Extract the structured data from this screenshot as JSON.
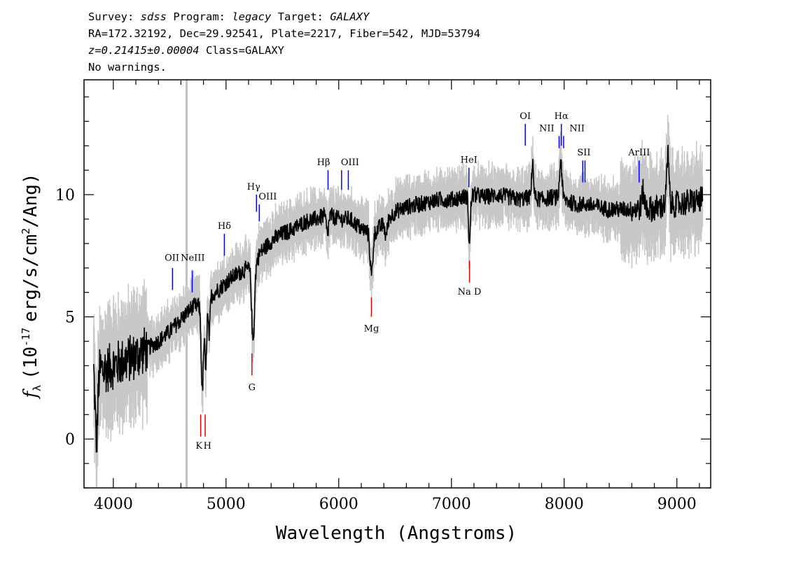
{
  "header": {
    "survey_label": "Survey:",
    "survey": "sdss",
    "program_label": "Program:",
    "program": "legacy",
    "target_label": "Target:",
    "target": "GALAXY",
    "line2": "RA=172.32192, Dec=29.92541, Plate=2217, Fiber=542, MJD=53794",
    "redshift": "z=0.21415±0.00004",
    "class_text": "Class=GALAXY",
    "warnings": "No warnings."
  },
  "chart_data": {
    "type": "line",
    "xlabel": "Wavelength (Angstroms)",
    "ylabel_prefix": "f",
    "ylabel_sub": "λ",
    "ylabel_text": "(10",
    "ylabel_exp": "-17",
    "ylabel_units": "erg/s/cm",
    "ylabel_exp2": "2",
    "ylabel_end": "/Ang)",
    "xlim": [
      3740,
      9300
    ],
    "ylim": [
      -2,
      14.7
    ],
    "xticks": [
      4000,
      5000,
      6000,
      7000,
      8000,
      9000
    ],
    "xtick_labels": [
      "4000",
      "5000",
      "6000",
      "7000",
      "8000",
      "9000"
    ],
    "yticks": [
      0,
      5,
      10
    ],
    "ytick_labels": [
      "0",
      "5",
      "10"
    ],
    "marker_line_x": 4650,
    "colors": {
      "flux": "#000000",
      "error_band": "#c8c8c8",
      "emission": "#0000ff",
      "absorption": "#e00000",
      "marker": "#c0c0c0"
    },
    "continuum_points": [
      [
        3830,
        3.1
      ],
      [
        3900,
        2.8
      ],
      [
        4000,
        3.0
      ],
      [
        4100,
        3.2
      ],
      [
        4200,
        3.4
      ],
      [
        4300,
        3.7
      ],
      [
        4400,
        4.0
      ],
      [
        4500,
        4.4
      ],
      [
        4600,
        4.9
      ],
      [
        4700,
        5.4
      ],
      [
        4800,
        5.5
      ],
      [
        4850,
        5.8
      ],
      [
        4950,
        6.2
      ],
      [
        5050,
        6.6
      ],
      [
        5150,
        6.9
      ],
      [
        5250,
        7.0
      ],
      [
        5300,
        7.6
      ],
      [
        5400,
        8.1
      ],
      [
        5500,
        8.4
      ],
      [
        5600,
        8.6
      ],
      [
        5700,
        8.9
      ],
      [
        5800,
        9.0
      ],
      [
        5900,
        9.2
      ],
      [
        6000,
        9.0
      ],
      [
        6100,
        9.0
      ],
      [
        6200,
        8.6
      ],
      [
        6300,
        8.4
      ],
      [
        6400,
        8.8
      ],
      [
        6500,
        9.3
      ],
      [
        6600,
        9.5
      ],
      [
        6700,
        9.6
      ],
      [
        6800,
        9.7
      ],
      [
        6900,
        9.8
      ],
      [
        7000,
        9.8
      ],
      [
        7100,
        9.9
      ],
      [
        7200,
        10.0
      ],
      [
        7300,
        9.9
      ],
      [
        7400,
        10.0
      ],
      [
        7500,
        9.9
      ],
      [
        7600,
        9.8
      ],
      [
        7700,
        9.9
      ],
      [
        7800,
        9.8
      ],
      [
        7900,
        9.9
      ],
      [
        8000,
        9.8
      ],
      [
        8100,
        9.6
      ],
      [
        8200,
        9.6
      ],
      [
        8300,
        9.5
      ],
      [
        8400,
        9.4
      ],
      [
        8500,
        9.4
      ],
      [
        8600,
        9.4
      ],
      [
        8700,
        9.5
      ],
      [
        8800,
        9.4
      ],
      [
        8900,
        9.6
      ],
      [
        9000,
        9.6
      ],
      [
        9100,
        9.7
      ],
      [
        9230,
        9.8
      ]
    ],
    "dips": [
      [
        3850,
        3.0,
        12
      ],
      [
        4790,
        3.5,
        10
      ],
      [
        4820,
        2.8,
        8
      ],
      [
        4850,
        1.6,
        8
      ],
      [
        5240,
        3.0,
        12
      ],
      [
        5900,
        0.8,
        10
      ],
      [
        6290,
        1.7,
        12
      ],
      [
        6420,
        0.6,
        10
      ],
      [
        7160,
        2.0,
        8
      ]
    ],
    "peaks": [
      [
        7720,
        1.5,
        8
      ],
      [
        7970,
        1.6,
        10
      ],
      [
        8920,
        2.0,
        10
      ],
      [
        8700,
        0.6,
        10
      ]
    ],
    "emission_lines": [
      {
        "label": "OII",
        "x": 4525,
        "tick_top": 7.0,
        "tick_bottom": 6.1,
        "label_y": 7.3
      },
      {
        "label": "NeIII",
        "x": 4700,
        "tick_top": 6.9,
        "tick_bottom": 6.0,
        "label_y": 7.2
      },
      {
        "label": "Hδ",
        "x": 4985,
        "tick_top": 8.4,
        "tick_bottom": 7.5,
        "label_y": 8.6
      },
      {
        "label": "Hγ",
        "x": 5270,
        "tick_top": 10.0,
        "tick_bottom": 9.3,
        "label_y": 10.2
      },
      {
        "label": "OIII",
        "x": 5295,
        "tick_top": 9.6,
        "tick_bottom": 8.9,
        "label_y": 9.8
      },
      {
        "label": "Hβ",
        "x": 5905,
        "tick_top": 11.0,
        "tick_bottom": 10.2,
        "label_y": 11.2
      },
      {
        "label": "OIII",
        "x": 6025,
        "tick_top": 11.0,
        "tick_bottom": 10.2,
        "label_y": 11.2
      },
      {
        "label": "OIII",
        "x": 6085,
        "tick_top": 11.0,
        "tick_bottom": 10.2,
        "label_y": 11.2
      },
      {
        "label": "HeI",
        "x": 7155,
        "tick_top": 11.1,
        "tick_bottom": 10.3,
        "label_y": 11.3
      },
      {
        "label": "OI",
        "x": 7655,
        "tick_top": 12.9,
        "tick_bottom": 12.0,
        "label_y": 13.1
      },
      {
        "label": "NII",
        "x": 7955,
        "tick_top": 12.4,
        "tick_bottom": 11.9,
        "label_y": 12.6
      },
      {
        "label": "Hα",
        "x": 7975,
        "tick_top": 12.9,
        "tick_bottom": 12.0,
        "label_y": 13.1
      },
      {
        "label": "NII",
        "x": 7995,
        "tick_top": 12.4,
        "tick_bottom": 11.9,
        "label_y": 12.6
      },
      {
        "label": "SII",
        "x": 8165,
        "tick_top": 11.4,
        "tick_bottom": 10.5,
        "label_y": 11.6
      },
      {
        "label": "SII",
        "x": 8185,
        "tick_top": 11.4,
        "tick_bottom": 10.5,
        "label_y": 11.6
      },
      {
        "label": "ArIII",
        "x": 8665,
        "tick_top": 11.4,
        "tick_bottom": 10.5,
        "label_y": 11.6
      }
    ],
    "emission_labels": [
      {
        "text": "OII",
        "x": 4520,
        "y": 7.3
      },
      {
        "text": "NeIII",
        "x": 4705,
        "y": 7.3
      },
      {
        "text": "Hδ",
        "x": 4985,
        "y": 8.6
      },
      {
        "text": "Hγ",
        "x": 5245,
        "y": 10.2
      },
      {
        "text": "OIII",
        "x": 5370,
        "y": 9.8
      },
      {
        "text": "Hβ",
        "x": 5865,
        "y": 11.2
      },
      {
        "text": "OIII",
        "x": 6100,
        "y": 11.2
      },
      {
        "text": "HeI",
        "x": 7155,
        "y": 11.3
      },
      {
        "text": "OI",
        "x": 7655,
        "y": 13.1
      },
      {
        "text": "NII",
        "x": 7845,
        "y": 12.6
      },
      {
        "text": "Hα",
        "x": 7975,
        "y": 13.1
      },
      {
        "text": "NII",
        "x": 8115,
        "y": 12.6
      },
      {
        "text": "SII",
        "x": 8175,
        "y": 11.6
      },
      {
        "text": "ArIII",
        "x": 8665,
        "y": 11.6
      }
    ],
    "absorption_lines": [
      {
        "x": 4775,
        "tick_top": 1.0,
        "tick_bottom": 0.1
      },
      {
        "x": 4815,
        "tick_top": 1.0,
        "tick_bottom": 0.1
      },
      {
        "x": 5230,
        "tick_top": 3.5,
        "tick_bottom": 2.6
      },
      {
        "x": 6290,
        "tick_top": 5.8,
        "tick_bottom": 5.0
      },
      {
        "x": 7160,
        "tick_top": 7.3,
        "tick_bottom": 6.4
      }
    ],
    "absorption_labels": [
      {
        "text": "K",
        "x": 4760,
        "y": -0.4
      },
      {
        "text": "H",
        "x": 4835,
        "y": -0.4
      },
      {
        "text": "G",
        "x": 5230,
        "y": 2.0
      },
      {
        "text": "Mg",
        "x": 6290,
        "y": 4.4
      },
      {
        "text": "Na D",
        "x": 7160,
        "y": 5.9
      }
    ]
  }
}
